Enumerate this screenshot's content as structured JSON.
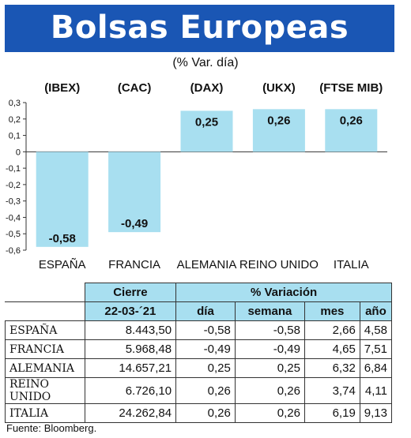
{
  "title": "Bolsas Europeas",
  "subtitle": "(% Var. día)",
  "footnote": "Fuente: Bloomberg.",
  "colors": {
    "banner": "#1a56b4",
    "bar": "#a8dff0",
    "header_fill": "#a8dff0"
  },
  "chart_data": {
    "type": "bar",
    "indices": [
      "(IBEX)",
      "(CAC)",
      "(DAX)",
      "(UKX)",
      "(FTSE MIB)"
    ],
    "categories": [
      "ESPAÑA",
      "FRANCIA",
      "ALEMANIA",
      "REINO UNIDO",
      "ITALIA"
    ],
    "values": [
      -0.58,
      -0.49,
      0.25,
      0.26,
      0.26
    ],
    "value_labels": [
      "-0,58",
      "-0,49",
      "0,25",
      "0,26",
      "0,26"
    ],
    "yticks": [
      0.3,
      0.2,
      0.1,
      0,
      -0.1,
      -0.2,
      -0.3,
      -0.4,
      -0.5,
      -0.6
    ],
    "ytick_labels": [
      "0,3",
      "0,2",
      "0,1",
      "0",
      "-0,1",
      "-0,2",
      "-0,3",
      "-0,4",
      "-0,5",
      "-0,6"
    ],
    "ylim": [
      -0.6,
      0.3
    ],
    "grid": false,
    "title": "",
    "xlabel": "",
    "ylabel": ""
  },
  "table": {
    "header_cierre": "Cierre",
    "header_variacion": "% Variación",
    "date": "22-03-´21",
    "columns": [
      "día",
      "semana",
      "mes",
      "año"
    ],
    "rows": [
      {
        "country": "ESPAÑA",
        "cierre": "8.443,50",
        "dia": "-0,58",
        "semana": "-0,58",
        "mes": "2,66",
        "anio": "4,58"
      },
      {
        "country": "FRANCIA",
        "cierre": "5.968,48",
        "dia": "-0,49",
        "semana": "-0,49",
        "mes": "4,65",
        "anio": "7,51"
      },
      {
        "country": "ALEMANIA",
        "cierre": "14.657,21",
        "dia": "0,25",
        "semana": "0,25",
        "mes": "6,32",
        "anio": "6,84"
      },
      {
        "country": "REINO UNIDO",
        "cierre": "6.726,10",
        "dia": "0,26",
        "semana": "0,26",
        "mes": "3,74",
        "anio": "4,11"
      },
      {
        "country": "ITALIA",
        "cierre": "24.262,84",
        "dia": "0,26",
        "semana": "0,26",
        "mes": "6,19",
        "anio": "9,13"
      }
    ]
  }
}
